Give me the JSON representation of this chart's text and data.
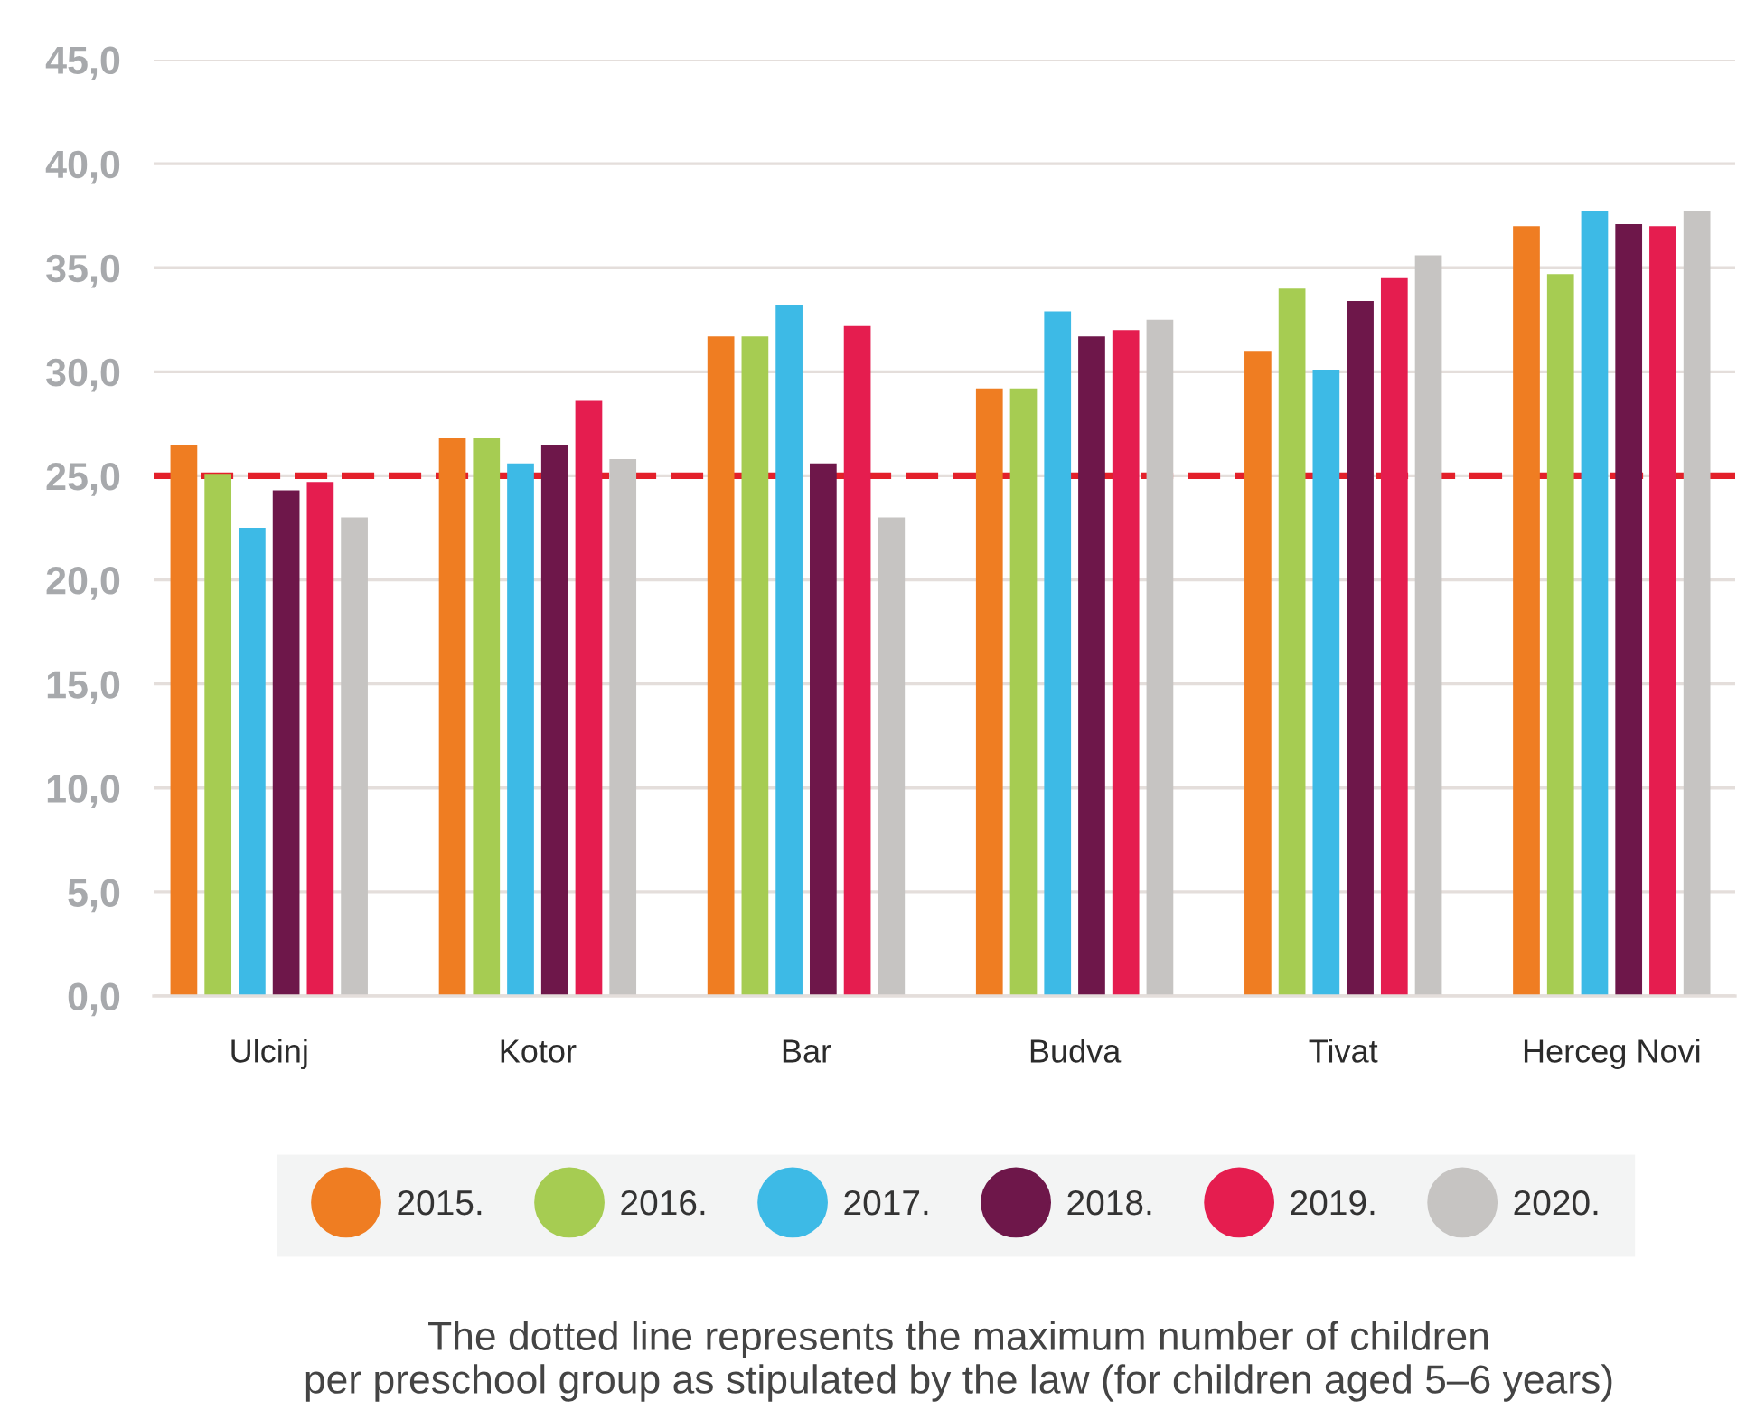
{
  "chart_data": {
    "type": "bar",
    "categories": [
      "Ulcinj",
      "Kotor",
      "Bar",
      "Budva",
      "Tivat",
      "Herceg Novi"
    ],
    "series": [
      {
        "name": "2015.",
        "color": "#ef7d22",
        "values": [
          26.5,
          26.8,
          31.7,
          29.2,
          31.0,
          37.0
        ]
      },
      {
        "name": "2016.",
        "color": "#a6cc52",
        "values": [
          25.1,
          26.8,
          31.7,
          29.2,
          34.0,
          34.7
        ]
      },
      {
        "name": "2017.",
        "color": "#3dbae6",
        "values": [
          22.5,
          25.6,
          33.2,
          32.9,
          30.1,
          37.7
        ]
      },
      {
        "name": "2018.",
        "color": "#6e174a",
        "values": [
          24.3,
          26.5,
          25.6,
          31.7,
          33.4,
          37.1
        ]
      },
      {
        "name": "2019.",
        "color": "#e51d4f",
        "values": [
          24.7,
          28.6,
          32.2,
          32.0,
          34.5,
          37.0
        ]
      },
      {
        "name": "2020.",
        "color": "#c6c4c2",
        "values": [
          23.0,
          25.8,
          23.0,
          32.5,
          35.6,
          37.7
        ]
      }
    ],
    "ylim": [
      0,
      45
    ],
    "yticks": [
      {
        "value": 0,
        "label": "0,0"
      },
      {
        "value": 5,
        "label": "5,0"
      },
      {
        "value": 10,
        "label": "10,0"
      },
      {
        "value": 15,
        "label": "15,0"
      },
      {
        "value": 20,
        "label": "20,0"
      },
      {
        "value": 25,
        "label": "25,0"
      },
      {
        "value": 30,
        "label": "30,0"
      },
      {
        "value": 35,
        "label": "35,0"
      },
      {
        "value": 40,
        "label": "40,0"
      },
      {
        "value": 45,
        "label": "45,0"
      }
    ],
    "grid": "y",
    "legend": "bottom",
    "ref_lines": [
      {
        "axis": "y",
        "value": 25,
        "color": "#e3202a",
        "line_style": "dashed"
      }
    ],
    "annotations": [
      "The dotted line represents the maximum number of children\nper preschool group as stipulated by the law (for children aged 5–6 years)"
    ]
  }
}
